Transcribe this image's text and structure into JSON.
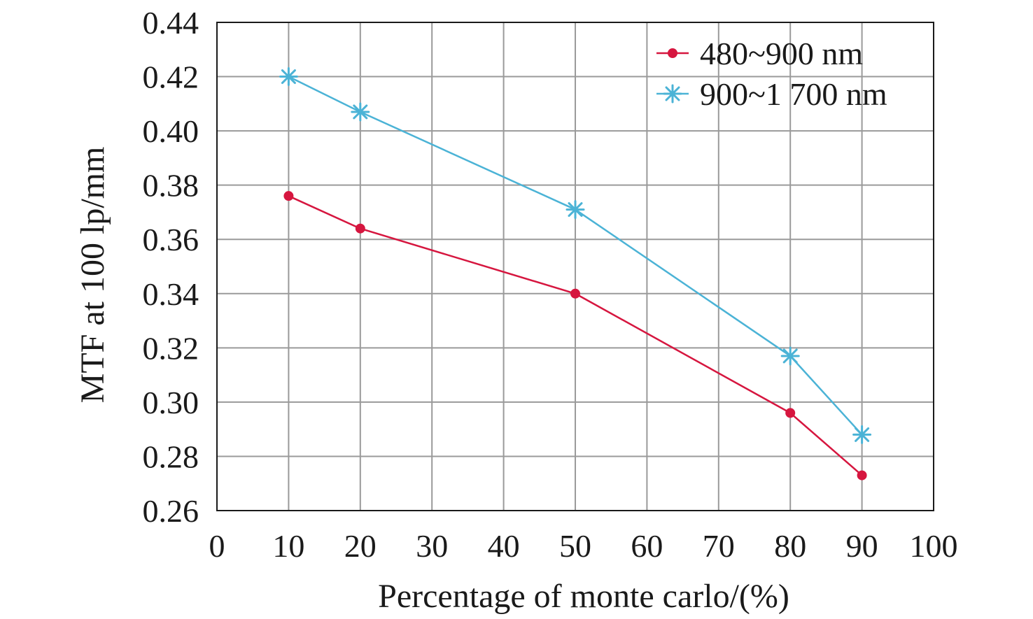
{
  "chart_data": {
    "type": "line",
    "title": "",
    "xlabel": "Percentage of monte carlo/(%)",
    "ylabel": "MTF at 100 lp/mm",
    "xlim": [
      0,
      100
    ],
    "ylim": [
      0.26,
      0.44
    ],
    "x_ticks": [
      "0",
      "10",
      "20",
      "30",
      "40",
      "50",
      "60",
      "70",
      "80",
      "90",
      "100"
    ],
    "y_ticks": [
      "0.26",
      "0.28",
      "0.30",
      "0.32",
      "0.34",
      "0.36",
      "0.38",
      "0.40",
      "0.42",
      "0.44"
    ],
    "grid": true,
    "legend_position": "top-right",
    "series": [
      {
        "name": "480~900 nm",
        "color": "#d6163f",
        "marker": "circle",
        "x": [
          10,
          20,
          50,
          80,
          90
        ],
        "y": [
          0.376,
          0.364,
          0.34,
          0.296,
          0.273
        ]
      },
      {
        "name": "900~1 700 nm",
        "color": "#4bb3d6",
        "marker": "asterisk",
        "x": [
          10,
          20,
          50,
          80,
          90
        ],
        "y": [
          0.42,
          0.407,
          0.371,
          0.317,
          0.288
        ]
      }
    ]
  }
}
